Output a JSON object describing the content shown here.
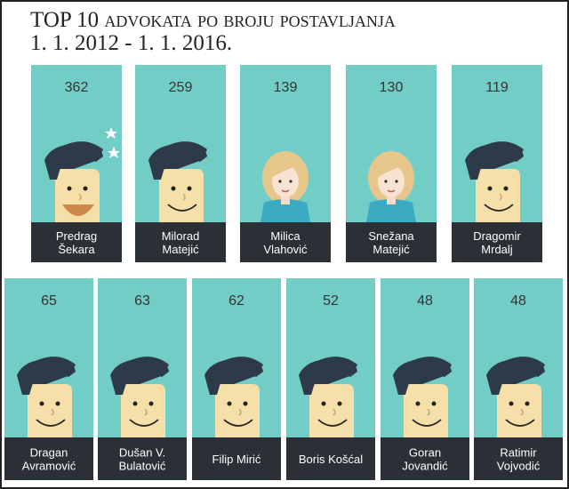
{
  "header": {
    "title": "TOP 10 advokata po broju postavljanja",
    "subtitle": "1. 1. 2012 - 1. 1. 2016."
  },
  "cards": [
    {
      "count": "362",
      "name": [
        "Predrag",
        "Šekara"
      ],
      "avatar": "male-laugh"
    },
    {
      "count": "259",
      "name": [
        "Milorad",
        "Matejić"
      ],
      "avatar": "male"
    },
    {
      "count": "139",
      "name": [
        "Milica",
        "Vlahović"
      ],
      "avatar": "female"
    },
    {
      "count": "130",
      "name": [
        "Snežana",
        "Matejić"
      ],
      "avatar": "female"
    },
    {
      "count": "119",
      "name": [
        "Dragomir",
        "Mrdalj"
      ],
      "avatar": "male"
    },
    {
      "count": "65",
      "name": [
        "Dragan",
        "Avramović"
      ],
      "avatar": "male"
    },
    {
      "count": "63",
      "name": [
        "Dušan V.",
        "Bulatović"
      ],
      "avatar": "male"
    },
    {
      "count": "62",
      "name": [
        "Filip Mirić"
      ],
      "avatar": "male"
    },
    {
      "count": "52",
      "name": [
        "Boris Košćal"
      ],
      "avatar": "male"
    },
    {
      "count": "48",
      "name": [
        "Goran",
        "Jovandić"
      ],
      "avatar": "male"
    },
    {
      "count": "48",
      "name": [
        "Ratimir",
        "Vojvodić"
      ],
      "avatar": "male"
    }
  ]
}
